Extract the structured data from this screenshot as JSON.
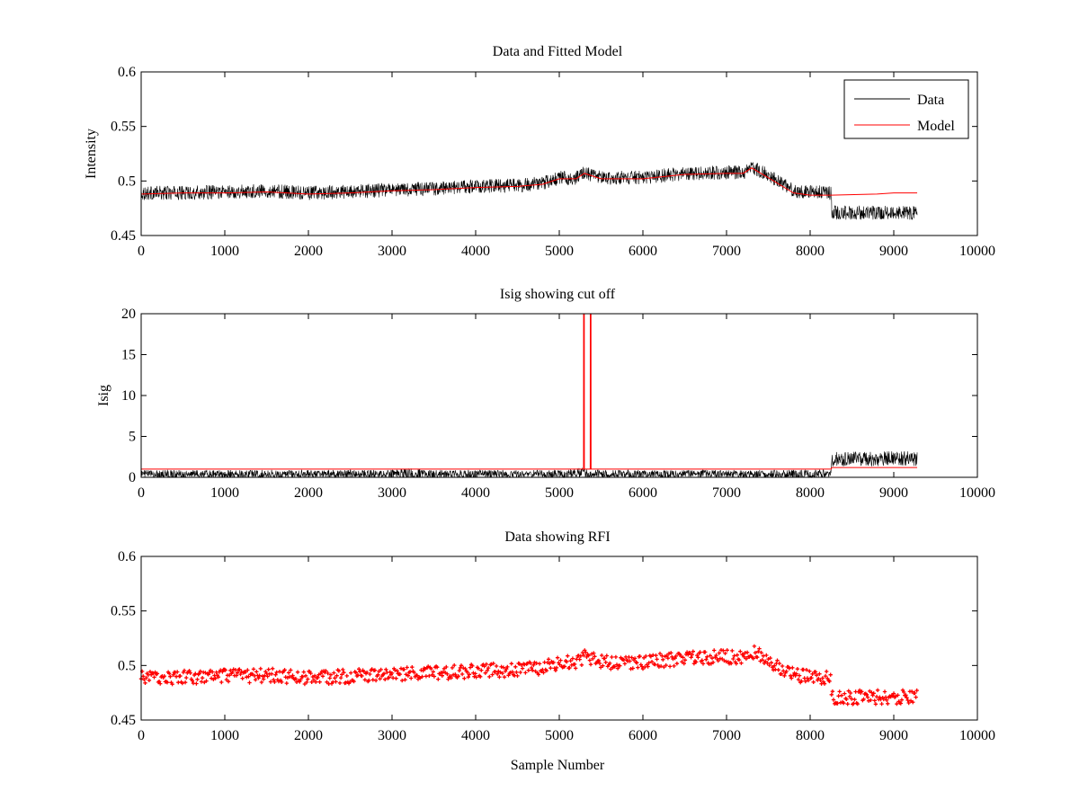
{
  "chart_data": [
    {
      "type": "line",
      "title": "Data and Fitted Model",
      "xlabel": "",
      "ylabel": "Intensity",
      "xlim": [
        0,
        10000
      ],
      "ylim": [
        0.45,
        0.6
      ],
      "xticks": [
        "0",
        "1000",
        "2000",
        "3000",
        "4000",
        "5000",
        "6000",
        "7000",
        "8000",
        "9000",
        "10000"
      ],
      "yticks": [
        "0.45",
        "0.5",
        "0.55",
        "0.6"
      ],
      "legend_position": "top-right",
      "series": [
        {
          "name": "Data",
          "color": "#000000",
          "style": "noisy line",
          "noise": 0.0065,
          "x": [
            0,
            500,
            1000,
            1500,
            2000,
            2500,
            3000,
            3500,
            4000,
            4500,
            4800,
            5000,
            5200,
            5300,
            5500,
            6000,
            6500,
            7000,
            7200,
            7300,
            7500,
            7800,
            8000,
            8250,
            8260,
            9000,
            9280
          ],
          "values": [
            0.489,
            0.489,
            0.49,
            0.491,
            0.489,
            0.49,
            0.492,
            0.493,
            0.495,
            0.496,
            0.498,
            0.503,
            0.503,
            0.508,
            0.503,
            0.503,
            0.507,
            0.508,
            0.508,
            0.513,
            0.505,
            0.491,
            0.49,
            0.489,
            0.471,
            0.471,
            0.471
          ]
        },
        {
          "name": "Model",
          "color": "#ff0000",
          "style": "line",
          "x": [
            0,
            500,
            1000,
            1500,
            2000,
            2500,
            3000,
            3500,
            4000,
            4500,
            4800,
            5000,
            5200,
            5300,
            5500,
            6000,
            6500,
            7000,
            7200,
            7300,
            7500,
            7800,
            8000,
            8250,
            8800,
            9000,
            9280
          ],
          "values": [
            0.488,
            0.489,
            0.489,
            0.49,
            0.488,
            0.489,
            0.491,
            0.492,
            0.494,
            0.495,
            0.497,
            0.502,
            0.502,
            0.507,
            0.502,
            0.502,
            0.506,
            0.507,
            0.507,
            0.512,
            0.503,
            0.489,
            0.487,
            0.487,
            0.488,
            0.489,
            0.489
          ]
        }
      ]
    },
    {
      "type": "line",
      "title": "Isig showing cut off",
      "xlabel": "",
      "ylabel": "Isig",
      "xlim": [
        0,
        10000
      ],
      "ylim": [
        0,
        20
      ],
      "xticks": [
        "0",
        "1000",
        "2000",
        "3000",
        "4000",
        "5000",
        "6000",
        "7000",
        "8000",
        "9000",
        "10000"
      ],
      "yticks": [
        "0",
        "5",
        "10",
        "15",
        "20"
      ],
      "series": [
        {
          "color": "#000000",
          "style": "noisy line",
          "x": [
            0,
            3000,
            3250,
            3500,
            5000,
            5300,
            5400,
            8000,
            8250,
            8260,
            9280
          ],
          "values": [
            0.4,
            0.4,
            0.5,
            0.4,
            0.4,
            0.5,
            0.4,
            0.4,
            0.5,
            2.2,
            2.3
          ],
          "noise": [
            0.5,
            0.5,
            0.7,
            0.5,
            0.5,
            0.7,
            0.5,
            0.5,
            0.5,
            0.9,
            0.9
          ]
        },
        {
          "color": "#ff0000",
          "style": "line",
          "x": [
            0,
            5290,
            5291,
            5299,
            5300,
            5370,
            5371,
            5379,
            5380,
            8250,
            8260,
            9280
          ],
          "values": [
            1.0,
            1.0,
            20,
            20,
            1.0,
            1.0,
            20,
            20,
            1.0,
            1.0,
            1.2,
            1.2
          ]
        }
      ]
    },
    {
      "type": "scatter",
      "title": "Data showing RFI",
      "xlabel": "Sample Number",
      "ylabel": "",
      "xlim": [
        0,
        10000
      ],
      "ylim": [
        0.45,
        0.6
      ],
      "xticks": [
        "0",
        "1000",
        "2000",
        "3000",
        "4000",
        "5000",
        "6000",
        "7000",
        "8000",
        "9000",
        "10000"
      ],
      "yticks": [
        "0.45",
        "0.5",
        "0.55",
        "0.6"
      ],
      "series": [
        {
          "color": "#ff0000",
          "style": "markers",
          "noise": 0.0065,
          "x": [
            0,
            500,
            1000,
            1500,
            2000,
            2500,
            3000,
            3500,
            4000,
            4500,
            4800,
            5000,
            5200,
            5300,
            5500,
            6000,
            6500,
            7000,
            7200,
            7300,
            7500,
            7800,
            8000,
            8250,
            8260,
            9000,
            9280
          ],
          "values": [
            0.489,
            0.489,
            0.49,
            0.491,
            0.489,
            0.49,
            0.492,
            0.493,
            0.495,
            0.496,
            0.498,
            0.503,
            0.503,
            0.508,
            0.503,
            0.503,
            0.507,
            0.508,
            0.508,
            0.513,
            0.505,
            0.491,
            0.49,
            0.489,
            0.471,
            0.471,
            0.471
          ]
        }
      ]
    }
  ]
}
